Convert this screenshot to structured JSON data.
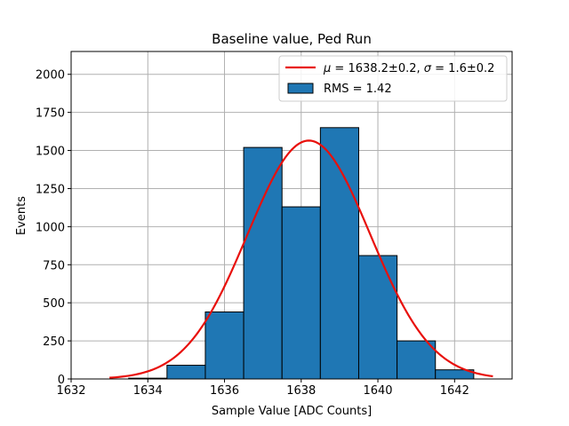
{
  "chart_data": {
    "type": "bar",
    "title": "Baseline value, Ped Run",
    "xlabel": "Sample Value [ADC Counts]",
    "ylabel": "Events",
    "xlim": [
      1632,
      1643.5
    ],
    "ylim": [
      0,
      2150
    ],
    "xticks": [
      1632,
      1634,
      1636,
      1638,
      1640,
      1642
    ],
    "yticks": [
      0,
      250,
      500,
      750,
      1000,
      1250,
      1500,
      1750,
      2000
    ],
    "grid": true,
    "legend_position": "top-right",
    "bars": [
      {
        "left": 1632.5,
        "right": 1633.5,
        "value": 0
      },
      {
        "left": 1633.5,
        "right": 1634.5,
        "value": 5
      },
      {
        "left": 1634.5,
        "right": 1635.5,
        "value": 90
      },
      {
        "left": 1635.5,
        "right": 1636.5,
        "value": 440
      },
      {
        "left": 1636.5,
        "right": 1637.5,
        "value": 1520
      },
      {
        "left": 1637.5,
        "right": 1638.5,
        "value": 1130
      },
      {
        "left": 1638.5,
        "right": 1639.5,
        "value": 1650
      },
      {
        "left": 1639.5,
        "right": 1640.5,
        "value": 810
      },
      {
        "left": 1640.5,
        "right": 1641.5,
        "value": 250
      },
      {
        "left": 1641.5,
        "right": 1642.5,
        "value": 60
      }
    ],
    "fit": {
      "mu": 1638.2,
      "sigma": 1.6,
      "amplitude": 1565,
      "x_range": [
        1633,
        1643
      ],
      "color": "#e8100c"
    },
    "bar_color": "#1f77b4",
    "legend": {
      "fit_label": "μ = 1638.2±0.2, σ = 1.6±0.2",
      "fit_mu_text": "μ",
      "fit_eq1_text": " = 1638.2±0.2, ",
      "fit_sigma_text": "σ",
      "fit_eq2_text": " = 1.6±0.2",
      "hist_label": "RMS = 1.42"
    }
  }
}
